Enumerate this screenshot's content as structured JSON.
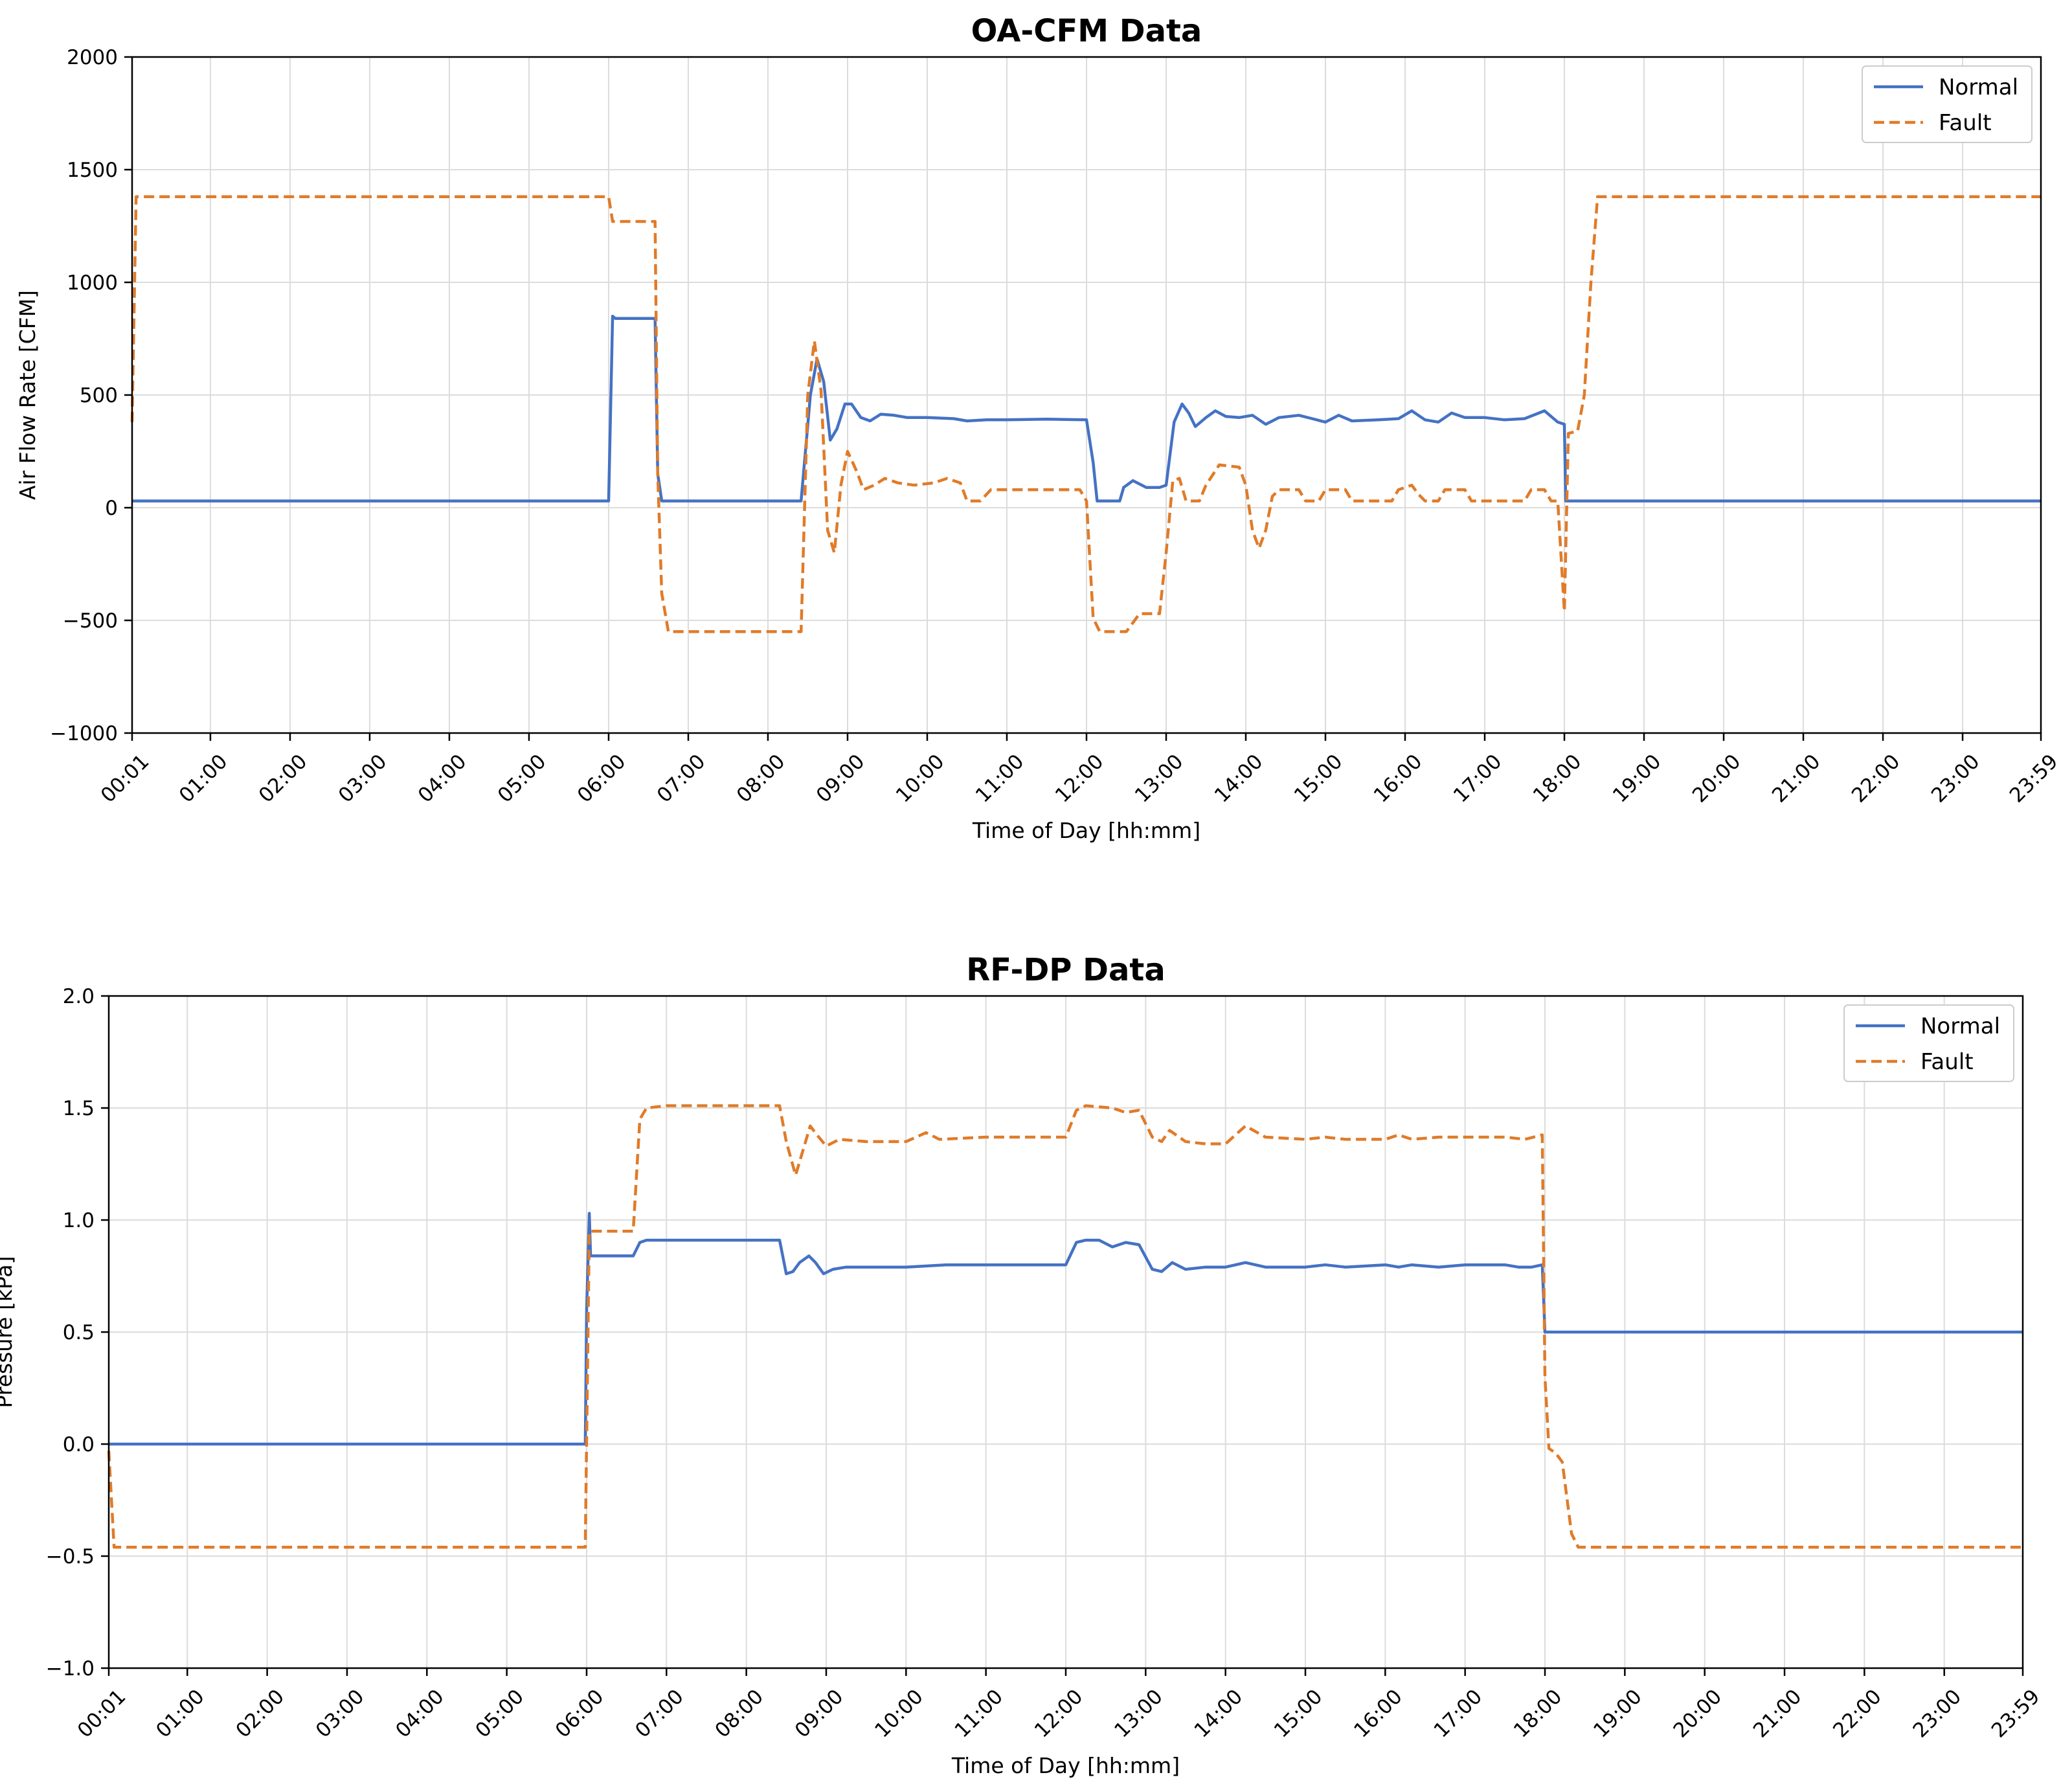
{
  "chart_data": [
    {
      "type": "line",
      "title": "OA-CFM Data",
      "xlabel": "Time of Day [hh:mm]",
      "ylabel": "Air Flow Rate [CFM]",
      "ylim": [
        -1000,
        2000
      ],
      "yticks": [
        -1000,
        -500,
        0,
        500,
        1000,
        1500,
        2000
      ],
      "ytick_labels": [
        "−1000",
        "−500",
        "0",
        "500",
        "1000",
        "1500",
        "2000"
      ],
      "xticks": [
        "00:01",
        "01:00",
        "02:00",
        "03:00",
        "04:00",
        "05:00",
        "06:00",
        "07:00",
        "08:00",
        "09:00",
        "10:00",
        "11:00",
        "12:00",
        "13:00",
        "14:00",
        "15:00",
        "16:00",
        "17:00",
        "18:00",
        "19:00",
        "20:00",
        "21:00",
        "22:00",
        "23:00",
        "23:59"
      ],
      "grid": true,
      "legend": "top-right",
      "series": [
        {
          "name": "Normal",
          "color": "#4472C4",
          "style": "solid",
          "points": [
            [
              "00:01",
              30
            ],
            [
              "06:00",
              30
            ],
            [
              "06:03",
              850
            ],
            [
              "06:05",
              840
            ],
            [
              "06:35",
              840
            ],
            [
              "06:37",
              150
            ],
            [
              "06:40",
              30
            ],
            [
              "08:25",
              30
            ],
            [
              "08:32",
              500
            ],
            [
              "08:37",
              660
            ],
            [
              "08:42",
              560
            ],
            [
              "08:47",
              300
            ],
            [
              "08:52",
              350
            ],
            [
              "08:58",
              460
            ],
            [
              "09:03",
              460
            ],
            [
              "09:10",
              400
            ],
            [
              "09:17",
              385
            ],
            [
              "09:25",
              415
            ],
            [
              "09:35",
              410
            ],
            [
              "09:45",
              400
            ],
            [
              "10:00",
              400
            ],
            [
              "10:20",
              395
            ],
            [
              "10:30",
              385
            ],
            [
              "10:45",
              390
            ],
            [
              "11:00",
              390
            ],
            [
              "11:30",
              393
            ],
            [
              "12:00",
              390
            ],
            [
              "12:05",
              200
            ],
            [
              "12:08",
              30
            ],
            [
              "12:25",
              30
            ],
            [
              "12:28",
              90
            ],
            [
              "12:35",
              120
            ],
            [
              "12:45",
              90
            ],
            [
              "12:55",
              90
            ],
            [
              "13:00",
              100
            ],
            [
              "13:06",
              380
            ],
            [
              "13:12",
              460
            ],
            [
              "13:17",
              420
            ],
            [
              "13:22",
              360
            ],
            [
              "13:30",
              400
            ],
            [
              "13:37",
              430
            ],
            [
              "13:45",
              405
            ],
            [
              "13:55",
              400
            ],
            [
              "14:05",
              410
            ],
            [
              "14:15",
              370
            ],
            [
              "14:25",
              400
            ],
            [
              "14:40",
              410
            ],
            [
              "14:50",
              395
            ],
            [
              "15:00",
              380
            ],
            [
              "15:10",
              410
            ],
            [
              "15:20",
              385
            ],
            [
              "15:40",
              390
            ],
            [
              "15:55",
              395
            ],
            [
              "16:05",
              430
            ],
            [
              "16:15",
              390
            ],
            [
              "16:25",
              380
            ],
            [
              "16:35",
              420
            ],
            [
              "16:45",
              400
            ],
            [
              "17:00",
              400
            ],
            [
              "17:15",
              390
            ],
            [
              "17:30",
              395
            ],
            [
              "17:45",
              430
            ],
            [
              "17:55",
              380
            ],
            [
              "18:00",
              370
            ],
            [
              "18:01",
              30
            ],
            [
              "23:59",
              30
            ]
          ]
        },
        {
          "name": "Fault",
          "color": "#E07B29",
          "style": "dashed",
          "points": [
            [
              "00:01",
              380
            ],
            [
              "00:04",
              1380
            ],
            [
              "06:00",
              1380
            ],
            [
              "06:03",
              1270
            ],
            [
              "06:35",
              1270
            ],
            [
              "06:37",
              150
            ],
            [
              "06:40",
              -380
            ],
            [
              "06:45",
              -550
            ],
            [
              "08:25",
              -550
            ],
            [
              "08:30",
              500
            ],
            [
              "08:35",
              740
            ],
            [
              "08:40",
              520
            ],
            [
              "08:45",
              -100
            ],
            [
              "08:50",
              -200
            ],
            [
              "08:55",
              100
            ],
            [
              "09:00",
              250
            ],
            [
              "09:07",
              160
            ],
            [
              "09:12",
              80
            ],
            [
              "09:20",
              100
            ],
            [
              "09:28",
              130
            ],
            [
              "09:38",
              110
            ],
            [
              "09:50",
              100
            ],
            [
              "10:05",
              110
            ],
            [
              "10:15",
              130
            ],
            [
              "10:25",
              110
            ],
            [
              "10:30",
              30
            ],
            [
              "10:40",
              30
            ],
            [
              "10:48",
              80
            ],
            [
              "11:00",
              80
            ],
            [
              "11:55",
              80
            ],
            [
              "12:00",
              30
            ],
            [
              "12:05",
              -490
            ],
            [
              "12:10",
              -550
            ],
            [
              "12:30",
              -550
            ],
            [
              "12:40",
              -470
            ],
            [
              "12:55",
              -470
            ],
            [
              "13:00",
              -200
            ],
            [
              "13:05",
              120
            ],
            [
              "13:10",
              130
            ],
            [
              "13:15",
              30
            ],
            [
              "13:25",
              30
            ],
            [
              "13:30",
              100
            ],
            [
              "13:40",
              190
            ],
            [
              "13:55",
              180
            ],
            [
              "14:00",
              100
            ],
            [
              "14:05",
              -100
            ],
            [
              "14:10",
              -180
            ],
            [
              "14:15",
              -100
            ],
            [
              "14:20",
              50
            ],
            [
              "14:25",
              80
            ],
            [
              "14:40",
              80
            ],
            [
              "14:45",
              30
            ],
            [
              "14:55",
              30
            ],
            [
              "15:00",
              80
            ],
            [
              "15:15",
              80
            ],
            [
              "15:20",
              30
            ],
            [
              "15:50",
              30
            ],
            [
              "15:55",
              80
            ],
            [
              "16:05",
              100
            ],
            [
              "16:10",
              60
            ],
            [
              "16:15",
              30
            ],
            [
              "16:25",
              30
            ],
            [
              "16:30",
              80
            ],
            [
              "16:45",
              80
            ],
            [
              "16:50",
              30
            ],
            [
              "17:30",
              30
            ],
            [
              "17:35",
              80
            ],
            [
              "17:45",
              80
            ],
            [
              "17:50",
              30
            ],
            [
              "17:55",
              30
            ],
            [
              "18:00",
              -460
            ],
            [
              "18:03",
              330
            ],
            [
              "18:10",
              340
            ],
            [
              "18:15",
              500
            ],
            [
              "18:20",
              1000
            ],
            [
              "18:25",
              1380
            ],
            [
              "23:59",
              1380
            ]
          ]
        }
      ]
    },
    {
      "type": "line",
      "title": "RF-DP Data",
      "xlabel": "Time of Day [hh:mm]",
      "ylabel": "Pressure [kPa]",
      "ylim": [
        -1.0,
        2.0
      ],
      "yticks": [
        -1.0,
        -0.5,
        0.0,
        0.5,
        1.0,
        1.5,
        2.0
      ],
      "ytick_labels": [
        "−1.0",
        "−0.5",
        "0.0",
        "0.5",
        "1.0",
        "1.5",
        "2.0"
      ],
      "xticks": [
        "00:01",
        "01:00",
        "02:00",
        "03:00",
        "04:00",
        "05:00",
        "06:00",
        "07:00",
        "08:00",
        "09:00",
        "10:00",
        "11:00",
        "12:00",
        "13:00",
        "14:00",
        "15:00",
        "16:00",
        "17:00",
        "18:00",
        "19:00",
        "20:00",
        "21:00",
        "22:00",
        "23:00",
        "23:59"
      ],
      "grid": true,
      "legend": "top-right",
      "series": [
        {
          "name": "Normal",
          "color": "#4472C4",
          "style": "solid",
          "points": [
            [
              "00:01",
              0.0
            ],
            [
              "05:59",
              0.0
            ],
            [
              "06:00",
              0.6
            ],
            [
              "06:02",
              1.03
            ],
            [
              "06:03",
              0.84
            ],
            [
              "06:35",
              0.84
            ],
            [
              "06:40",
              0.9
            ],
            [
              "06:45",
              0.91
            ],
            [
              "08:25",
              0.91
            ],
            [
              "08:30",
              0.76
            ],
            [
              "08:35",
              0.77
            ],
            [
              "08:40",
              0.81
            ],
            [
              "08:47",
              0.84
            ],
            [
              "08:52",
              0.81
            ],
            [
              "08:58",
              0.76
            ],
            [
              "09:05",
              0.78
            ],
            [
              "09:15",
              0.79
            ],
            [
              "09:30",
              0.79
            ],
            [
              "10:00",
              0.79
            ],
            [
              "10:30",
              0.8
            ],
            [
              "11:00",
              0.8
            ],
            [
              "12:00",
              0.8
            ],
            [
              "12:08",
              0.9
            ],
            [
              "12:15",
              0.91
            ],
            [
              "12:25",
              0.91
            ],
            [
              "12:35",
              0.88
            ],
            [
              "12:45",
              0.9
            ],
            [
              "12:55",
              0.89
            ],
            [
              "13:05",
              0.78
            ],
            [
              "13:12",
              0.77
            ],
            [
              "13:20",
              0.81
            ],
            [
              "13:30",
              0.78
            ],
            [
              "13:45",
              0.79
            ],
            [
              "14:00",
              0.79
            ],
            [
              "14:15",
              0.81
            ],
            [
              "14:30",
              0.79
            ],
            [
              "15:00",
              0.79
            ],
            [
              "15:15",
              0.8
            ],
            [
              "15:30",
              0.79
            ],
            [
              "16:00",
              0.8
            ],
            [
              "16:10",
              0.79
            ],
            [
              "16:20",
              0.8
            ],
            [
              "16:40",
              0.79
            ],
            [
              "17:00",
              0.8
            ],
            [
              "17:30",
              0.8
            ],
            [
              "17:40",
              0.79
            ],
            [
              "17:50",
              0.79
            ],
            [
              "17:58",
              0.8
            ],
            [
              "18:00",
              0.5
            ],
            [
              "23:59",
              0.5
            ]
          ]
        },
        {
          "name": "Fault",
          "color": "#E07B29",
          "style": "dashed",
          "points": [
            [
              "00:01",
              -0.03
            ],
            [
              "00:05",
              -0.46
            ],
            [
              "05:59",
              -0.46
            ],
            [
              "06:02",
              0.95
            ],
            [
              "06:05",
              0.95
            ],
            [
              "06:35",
              0.95
            ],
            [
              "06:40",
              1.45
            ],
            [
              "06:45",
              1.5
            ],
            [
              "07:00",
              1.51
            ],
            [
              "08:25",
              1.51
            ],
            [
              "08:30",
              1.35
            ],
            [
              "08:37",
              1.2
            ],
            [
              "08:42",
              1.3
            ],
            [
              "08:48",
              1.42
            ],
            [
              "08:53",
              1.38
            ],
            [
              "09:00",
              1.33
            ],
            [
              "09:10",
              1.36
            ],
            [
              "09:30",
              1.35
            ],
            [
              "10:00",
              1.35
            ],
            [
              "10:15",
              1.39
            ],
            [
              "10:25",
              1.36
            ],
            [
              "11:00",
              1.37
            ],
            [
              "12:00",
              1.37
            ],
            [
              "12:08",
              1.49
            ],
            [
              "12:15",
              1.51
            ],
            [
              "12:35",
              1.5
            ],
            [
              "12:45",
              1.48
            ],
            [
              "12:55",
              1.49
            ],
            [
              "13:05",
              1.37
            ],
            [
              "13:12",
              1.35
            ],
            [
              "13:18",
              1.4
            ],
            [
              "13:30",
              1.35
            ],
            [
              "13:45",
              1.34
            ],
            [
              "14:00",
              1.34
            ],
            [
              "14:15",
              1.42
            ],
            [
              "14:30",
              1.37
            ],
            [
              "15:00",
              1.36
            ],
            [
              "15:15",
              1.37
            ],
            [
              "15:30",
              1.36
            ],
            [
              "16:00",
              1.36
            ],
            [
              "16:10",
              1.38
            ],
            [
              "16:20",
              1.36
            ],
            [
              "16:40",
              1.37
            ],
            [
              "17:00",
              1.37
            ],
            [
              "17:30",
              1.37
            ],
            [
              "17:45",
              1.36
            ],
            [
              "17:58",
              1.38
            ],
            [
              "18:00",
              0.3
            ],
            [
              "18:03",
              -0.02
            ],
            [
              "18:08",
              -0.04
            ],
            [
              "18:13",
              -0.08
            ],
            [
              "18:20",
              -0.4
            ],
            [
              "18:25",
              -0.46
            ],
            [
              "23:59",
              -0.46
            ]
          ]
        }
      ]
    }
  ]
}
